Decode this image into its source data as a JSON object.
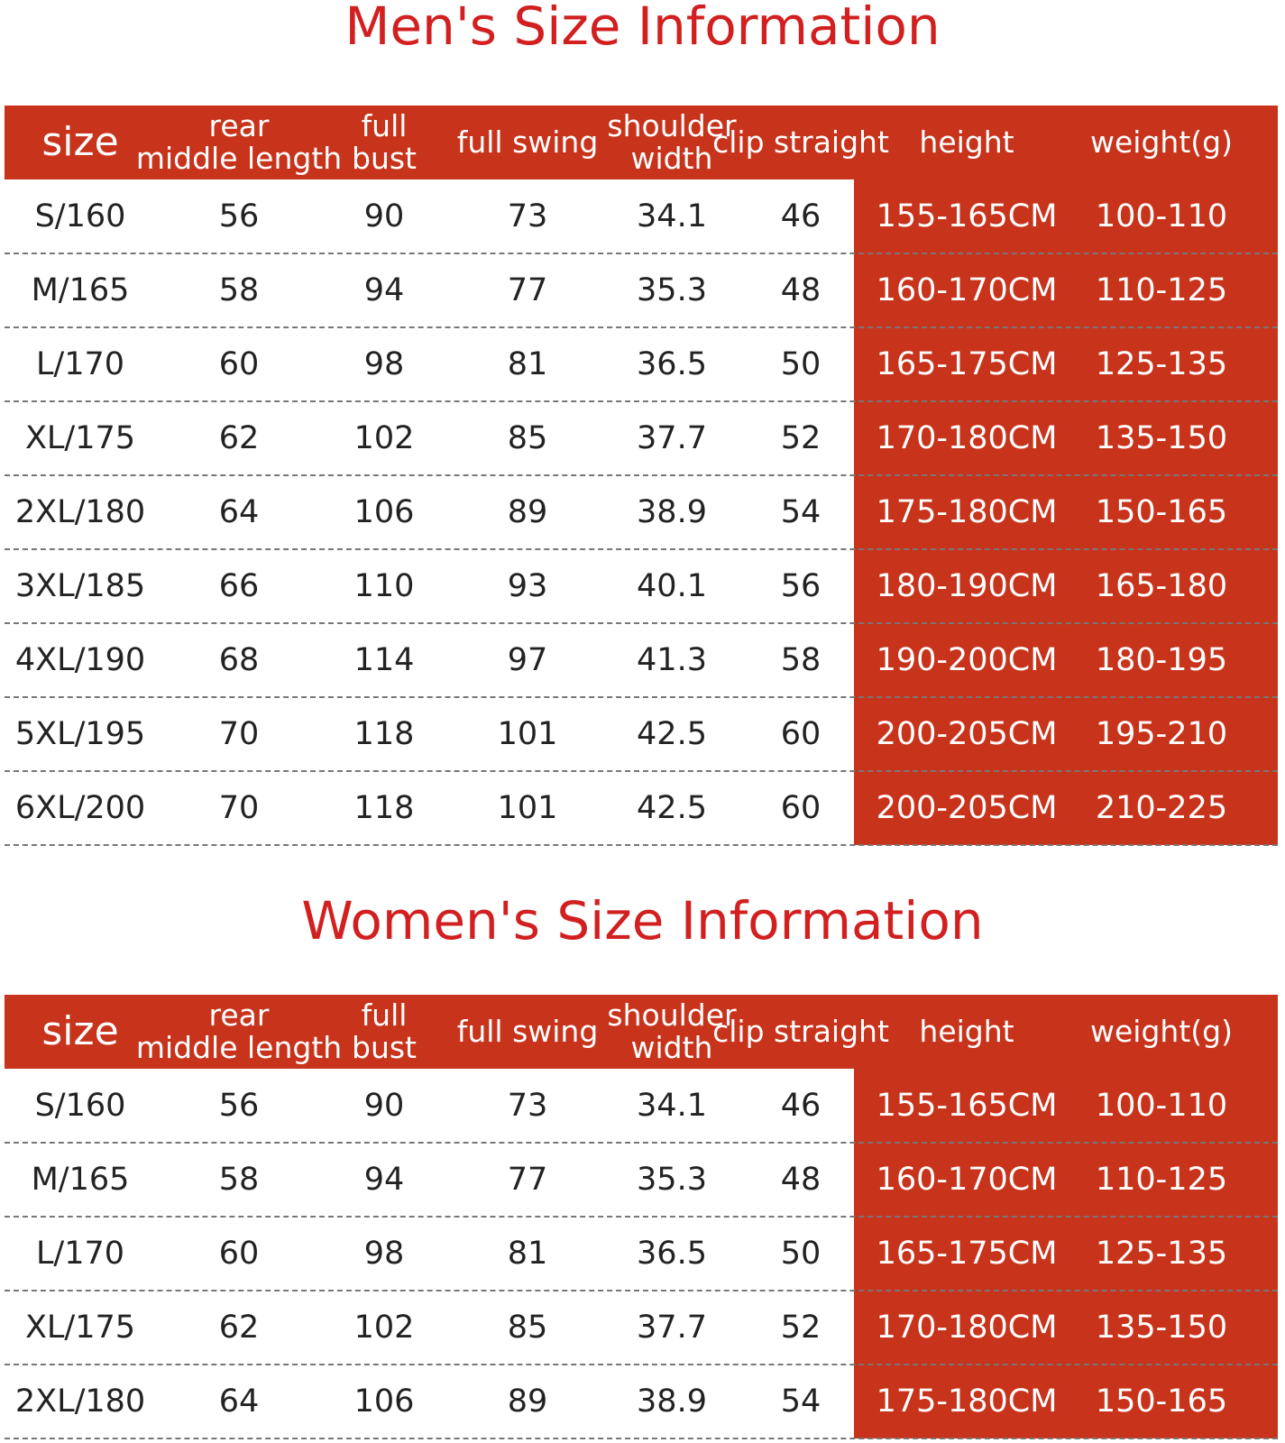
{
  "sections": [
    {
      "title": "Men's Size Information",
      "header": [
        [
          "size"
        ],
        [
          "rear",
          "middle length"
        ],
        [
          "full",
          "bust"
        ],
        [
          "full swing"
        ],
        [
          "shoulder",
          "width"
        ],
        [
          "clip straight"
        ],
        [
          "height"
        ],
        [
          "weight(g)"
        ]
      ],
      "rows": [
        [
          "S/160",
          56,
          90,
          73,
          34.1,
          46,
          "155-165CM",
          "100-110"
        ],
        [
          "M/165",
          58,
          94,
          77,
          35.3,
          48,
          "160-170CM",
          "110-125"
        ],
        [
          "L/170",
          60,
          98,
          81,
          36.5,
          50,
          "165-175CM",
          "125-135"
        ],
        [
          "XL/175",
          62,
          102,
          85,
          37.7,
          52,
          "170-180CM",
          "135-150"
        ],
        [
          "2XL/180",
          64,
          106,
          89,
          38.9,
          54,
          "175-180CM",
          "150-165"
        ],
        [
          "3XL/185",
          66,
          110,
          93,
          40.1,
          56,
          "180-190CM",
          "165-180"
        ],
        [
          "4XL/190",
          68,
          114,
          97,
          41.3,
          58,
          "190-200CM",
          "180-195"
        ],
        [
          "5XL/195",
          70,
          118,
          101,
          42.5,
          60,
          "200-205CM",
          "195-210"
        ],
        [
          "6XL/200",
          70,
          118,
          101,
          42.5,
          60,
          "200-205CM",
          "210-225"
        ]
      ]
    },
    {
      "title": "Women's Size Information",
      "header": [
        [
          "size"
        ],
        [
          "rear",
          "middle length"
        ],
        [
          "full",
          "bust"
        ],
        [
          "full swing"
        ],
        [
          "shoulder",
          "width"
        ],
        [
          "clip straight"
        ],
        [
          "height"
        ],
        [
          "weight(g)"
        ]
      ],
      "rows": [
        [
          "S/160",
          56,
          90,
          73,
          34.1,
          46,
          "155-165CM",
          "100-110"
        ],
        [
          "M/165",
          58,
          94,
          77,
          35.3,
          48,
          "160-170CM",
          "110-125"
        ],
        [
          "L/170",
          60,
          98,
          81,
          36.5,
          50,
          "165-175CM",
          "125-135"
        ],
        [
          "XL/175",
          62,
          102,
          85,
          37.7,
          52,
          "170-180CM",
          "135-150"
        ],
        [
          "2XL/180",
          64,
          106,
          89,
          38.9,
          54,
          "175-180CM",
          "150-165"
        ]
      ]
    }
  ]
}
